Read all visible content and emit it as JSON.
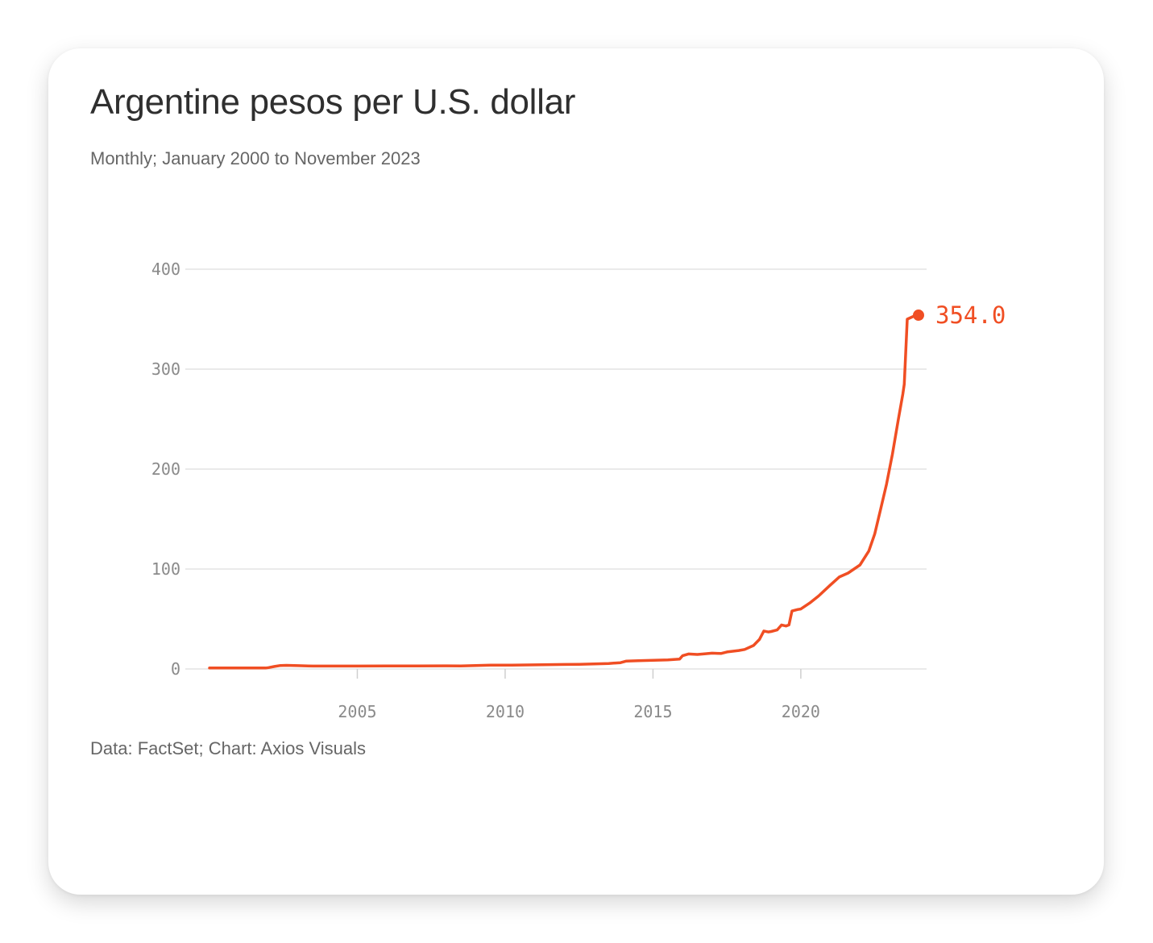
{
  "card": {
    "title": "Argentine pesos per U.S. dollar",
    "subtitle": "Monthly; January 2000 to November 2023",
    "source": "Data: FactSet; Chart: Axios Visuals"
  },
  "colors": {
    "line": "#f04e23",
    "grid": "#e3e3e3",
    "text": "#2f2f2f",
    "muted": "#666666",
    "tick": "#8a8a8a"
  },
  "chart_data": {
    "type": "line",
    "title": "Argentine pesos per U.S. dollar",
    "subtitle": "Monthly; January 2000 to November 2023",
    "xlabel": "",
    "ylabel": "",
    "xlim": [
      2000,
      2023.9
    ],
    "ylim": [
      0,
      400
    ],
    "grid": true,
    "y_ticks": [
      0,
      100,
      200,
      300,
      400
    ],
    "x_ticks": [
      2005,
      2010,
      2015,
      2020
    ],
    "end_label": "354.0",
    "series": [
      {
        "points": [
          [
            2000.0,
            1.0
          ],
          [
            2001.9,
            1.0
          ],
          [
            2002.0,
            1.4
          ],
          [
            2002.2,
            2.5
          ],
          [
            2002.4,
            3.5
          ],
          [
            2002.6,
            3.6
          ],
          [
            2003.0,
            3.3
          ],
          [
            2003.5,
            2.9
          ],
          [
            2004.0,
            2.9
          ],
          [
            2005.0,
            2.9
          ],
          [
            2006.0,
            3.05
          ],
          [
            2007.0,
            3.1
          ],
          [
            2008.0,
            3.15
          ],
          [
            2008.5,
            3.0
          ],
          [
            2009.0,
            3.4
          ],
          [
            2009.5,
            3.8
          ],
          [
            2010.0,
            3.8
          ],
          [
            2011.0,
            4.1
          ],
          [
            2012.0,
            4.5
          ],
          [
            2012.5,
            4.7
          ],
          [
            2013.0,
            5.0
          ],
          [
            2013.5,
            5.5
          ],
          [
            2013.9,
            6.3
          ],
          [
            2014.1,
            7.9
          ],
          [
            2014.5,
            8.2
          ],
          [
            2015.0,
            8.6
          ],
          [
            2015.5,
            9.1
          ],
          [
            2015.9,
            9.8
          ],
          [
            2016.0,
            13.2
          ],
          [
            2016.2,
            15.0
          ],
          [
            2016.5,
            14.5
          ],
          [
            2016.7,
            15.0
          ],
          [
            2017.0,
            15.8
          ],
          [
            2017.3,
            15.5
          ],
          [
            2017.5,
            17.0
          ],
          [
            2017.9,
            18.5
          ],
          [
            2018.1,
            19.5
          ],
          [
            2018.4,
            23.5
          ],
          [
            2018.6,
            29.5
          ],
          [
            2018.75,
            38.0
          ],
          [
            2018.9,
            37.0
          ],
          [
            2019.0,
            37.5
          ],
          [
            2019.2,
            39.0
          ],
          [
            2019.35,
            44.0
          ],
          [
            2019.5,
            43.0
          ],
          [
            2019.6,
            44.0
          ],
          [
            2019.7,
            58.0
          ],
          [
            2019.9,
            59.5
          ],
          [
            2020.0,
            60.0
          ],
          [
            2020.3,
            66.0
          ],
          [
            2020.6,
            73.0
          ],
          [
            2021.0,
            84.0
          ],
          [
            2021.3,
            92.0
          ],
          [
            2021.6,
            96.0
          ],
          [
            2022.0,
            104.0
          ],
          [
            2022.3,
            118.0
          ],
          [
            2022.5,
            135.0
          ],
          [
            2022.7,
            160.0
          ],
          [
            2022.9,
            185.0
          ],
          [
            2023.1,
            215.0
          ],
          [
            2023.3,
            250.0
          ],
          [
            2023.45,
            275.0
          ],
          [
            2023.5,
            285.0
          ],
          [
            2023.6,
            350.0
          ],
          [
            2023.9,
            354.0
          ]
        ]
      }
    ]
  }
}
